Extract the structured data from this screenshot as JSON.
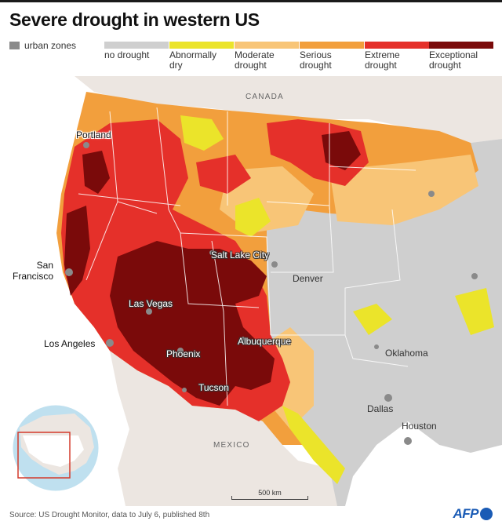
{
  "title": "Severe drought in western US",
  "urban_legend_label": "urban zones",
  "colors": {
    "urban": "#8a8a8a",
    "no_drought": "#cfcfcf",
    "abnormally_dry": "#ebe42a",
    "moderate_drought": "#f8c577",
    "serious_drought": "#f29f3d",
    "extreme_drought": "#e5302a",
    "exceptional_drought": "#7a0a0a",
    "water": "#bfe0ef",
    "other_land": "#ece6e1",
    "afp_blue": "#1a5bb5"
  },
  "legend": [
    {
      "label": "no drought",
      "color": "#cfcfcf"
    },
    {
      "label": "Abnormally\ndry",
      "color": "#ebe42a"
    },
    {
      "label": "Moderate\ndrought",
      "color": "#f8c577"
    },
    {
      "label": "Serious\ndrought",
      "color": "#f29f3d"
    },
    {
      "label": "Extreme\ndrought",
      "color": "#e5302a"
    },
    {
      "label": "Exceptional\ndrought",
      "color": "#7a0a0a"
    }
  ],
  "countries": {
    "canada": "CANADA",
    "mexico": "MEXICO"
  },
  "cities": {
    "portland": "Portland",
    "san_francisco": "San\nFrancisco",
    "salt_lake_city": "Salt Lake City",
    "denver": "Denver",
    "las_vegas": "Las Vegas",
    "los_angeles": "Los Angeles",
    "albuquerque": "Albuquerque",
    "phoenix": "Phoenix",
    "oklahoma": "Oklahoma",
    "tucson": "Tucson",
    "dallas": "Dallas",
    "houston": "Houston"
  },
  "scale_label": "500 km",
  "source": "Source: US Drought Monitor, data to July 6, published 8th",
  "logo_text": "AFP"
}
